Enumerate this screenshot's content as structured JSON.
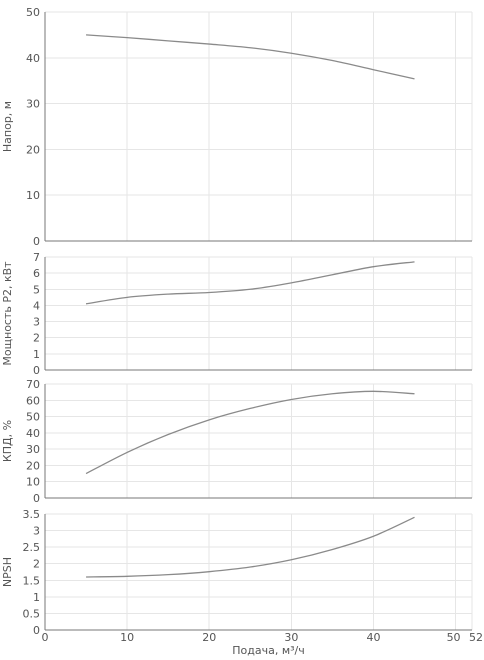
{
  "chart_data": [
    {
      "type": "line",
      "ylabel": "Напор, м",
      "xlim": [
        0,
        52
      ],
      "ylim": [
        0,
        50
      ],
      "yticks": [
        "0",
        "10",
        "20",
        "30",
        "40",
        "50"
      ],
      "grid": true,
      "series": [
        {
          "x": [
            5,
            10,
            15,
            20,
            25,
            30,
            35,
            40,
            45
          ],
          "values": [
            45,
            44.4,
            43.7,
            43.0,
            42.2,
            41.0,
            39.4,
            37.4,
            35.4
          ]
        }
      ]
    },
    {
      "type": "line",
      "ylabel": "Мощность P2, кВт",
      "xlim": [
        0,
        52
      ],
      "ylim": [
        0,
        7
      ],
      "yticks": [
        "0",
        "1",
        "2",
        "3",
        "4",
        "5",
        "6",
        "7"
      ],
      "grid": true,
      "series": [
        {
          "x": [
            5,
            10,
            15,
            20,
            25,
            30,
            35,
            40,
            45
          ],
          "values": [
            4.1,
            4.5,
            4.7,
            4.8,
            5.0,
            5.4,
            5.9,
            6.4,
            6.7
          ]
        }
      ]
    },
    {
      "type": "line",
      "ylabel": "КПД, %",
      "xlim": [
        0,
        52
      ],
      "ylim": [
        0,
        70
      ],
      "yticks": [
        "0",
        "10",
        "20",
        "30",
        "40",
        "50",
        "60",
        "70"
      ],
      "grid": true,
      "series": [
        {
          "x": [
            5,
            10,
            15,
            20,
            25,
            30,
            35,
            40,
            45
          ],
          "values": [
            15,
            28,
            39,
            48,
            55,
            60.5,
            64,
            65.5,
            64
          ]
        }
      ]
    },
    {
      "type": "line",
      "ylabel": "NPSH",
      "xlabel": "Подача, м³/ч",
      "xlim": [
        0,
        52
      ],
      "ylim": [
        0,
        3.5
      ],
      "yticks": [
        "0",
        "0.5",
        "1",
        "1.5",
        "2",
        "2.5",
        "3",
        "3.5"
      ],
      "xticks": [
        "0",
        "10",
        "20",
        "30",
        "40",
        "50",
        "52"
      ],
      "xtick_values": [
        0,
        10,
        20,
        30,
        40,
        50,
        52
      ],
      "grid": true,
      "series": [
        {
          "x": [
            5,
            10,
            15,
            20,
            25,
            30,
            35,
            40,
            45
          ],
          "values": [
            1.6,
            1.62,
            1.67,
            1.76,
            1.9,
            2.12,
            2.43,
            2.83,
            3.4
          ]
        }
      ]
    }
  ]
}
